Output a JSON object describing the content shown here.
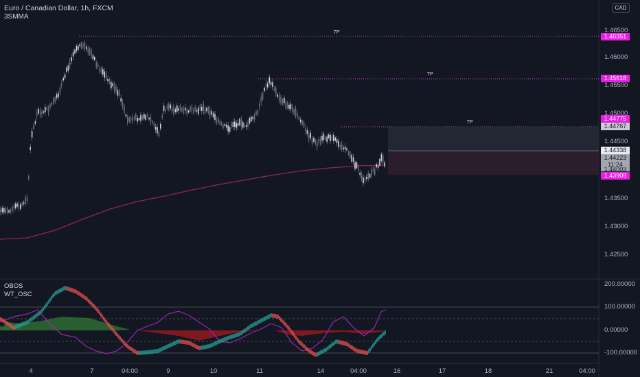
{
  "header": {
    "symbol": "Euro / Canadian Dollar, 1h, FXCM",
    "indicator": "3SMMA",
    "currency": "CAD"
  },
  "price_axis": {
    "ticks": [
      "1.46500",
      "1.46000",
      "1.45500",
      "1.45000",
      "1.44500",
      "1.43500",
      "1.43000",
      "1.42500"
    ],
    "tags": {
      "tp1": "1.46351",
      "tp2": "1.45618",
      "tp3": "1.44775",
      "entry": "1.44767",
      "last": "1.44338",
      "close": "1.44223",
      "countdown": "11:24",
      "hidden": "1.44003",
      "stop": "1.43909"
    }
  },
  "tp_labels": [
    "TP",
    "TP",
    "TP"
  ],
  "oscillator": {
    "name": "OBOS",
    "sub": "WT_OSC",
    "ticks": [
      "200.00000",
      "100.00000",
      "0.00000",
      "-100.00000"
    ]
  },
  "time_axis": [
    "4",
    "7",
    "04:00",
    "9",
    "10",
    "11",
    "14",
    "04:00",
    "16",
    "17",
    "18",
    "21",
    "04:00"
  ],
  "colors": {
    "background": "#131722",
    "tp_tag": "#e91ee3",
    "candle": "#c8cbd2",
    "ma_line": "#8a2a4e",
    "osc_up": "#26a69a",
    "osc_down": "#ef5350",
    "osc_purple": "#9c27b0"
  }
}
